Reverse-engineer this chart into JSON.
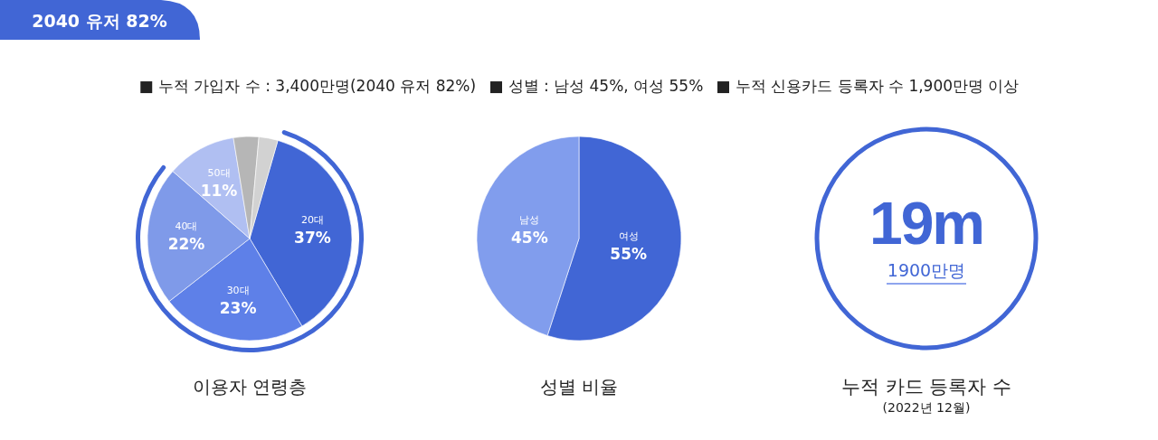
{
  "chart_data": [
    {
      "type": "other",
      "title": "2040 유저 82%",
      "annotations": [
        "■ 누적 가입자 수 : 3,400만명(2040 유저 82%)",
        "■ 성별 : 남성 45%, 여성 55%",
        "■ 누적 신용카드 등록자 수 1,900만명 이상"
      ]
    },
    {
      "type": "pie",
      "title": "이용자 연령층",
      "categories": [
        "20대",
        "30대",
        "40대",
        "50대",
        null,
        null
      ],
      "values": [
        37,
        23,
        22,
        11,
        4,
        3
      ],
      "colors": [
        "#4166d5",
        "#5e80e8",
        "#7f9ae9",
        "#b0bff2",
        "#b6b6b6",
        "#d2d2d2"
      ],
      "value_labels": [
        "37%",
        "23%",
        "22%",
        "11%",
        null,
        null
      ]
    },
    {
      "type": "pie",
      "title": "성별 비율",
      "categories": [
        "여성",
        "남성"
      ],
      "values": [
        55,
        45
      ],
      "colors": [
        "#4166d5",
        "#819ded"
      ],
      "value_labels": [
        "55%",
        "45%"
      ]
    },
    {
      "type": "other",
      "title": "누적 카드 등록자 수",
      "subtitle": "(2022년 12월)",
      "annotations": [
        "19m",
        "1900만명"
      ]
    }
  ]
}
